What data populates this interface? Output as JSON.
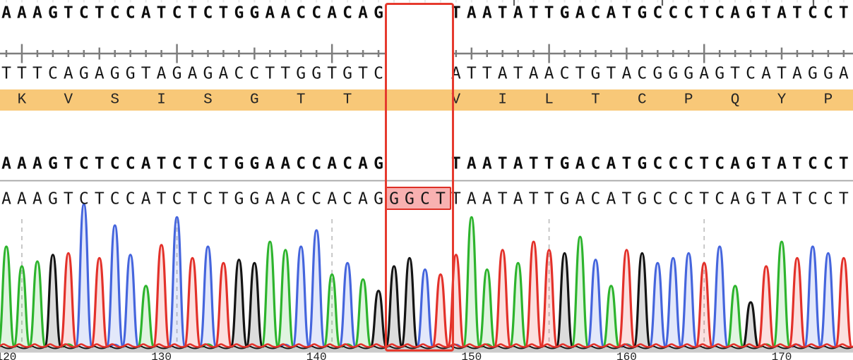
{
  "view_title": "sequence-alignment-with-chromatogram",
  "alignment": {
    "reference_row": {
      "left": "AAAGTCTCCATCTCTGGAACCACAG",
      "right": "TAATATTGACATGCCCTCAGTATCCT"
    },
    "complement_row": {
      "left": "TTTCAGAGGTAGAGACCTTGGTGTC",
      "right": "ATTATAACTGTACGGGAGTCATAGGA"
    },
    "translation_row": {
      "left": [
        "K",
        "V",
        "S",
        "I",
        "S",
        "G",
        "T",
        "T"
      ],
      "right": [
        "V",
        "I",
        "L",
        "T",
        "C",
        "P",
        "Q",
        "Y",
        "P"
      ],
      "band_color": "#f8c878"
    },
    "consensus_row": {
      "left": "AAAGTCTCCATCTCTGGAACCACAG",
      "right": "TAATATTGACATGCCCTCAGTATCCT"
    },
    "insertion": {
      "bases": "GGCT",
      "gap_columns": 4,
      "box_border_color": "#e63a2e",
      "bases_fill_color": "#f8b1b1",
      "bases_border_color": "#dd2f26"
    }
  },
  "chart_data": {
    "type": "chromatogram",
    "title": "",
    "sequence": "AAAGTCTCCATCTCTGGAACCACAGGGCTTAATATTGACATGCCCTCAGTATCCT",
    "peak_heights": [
      0.62,
      0.5,
      0.53,
      0.57,
      0.58,
      0.88,
      0.55,
      0.75,
      0.57,
      0.38,
      0.63,
      0.8,
      0.55,
      0.62,
      0.52,
      0.54,
      0.52,
      0.65,
      0.6,
      0.62,
      0.72,
      0.45,
      0.52,
      0.42,
      0.35,
      0.5,
      0.55,
      0.48,
      0.45,
      0.57,
      0.8,
      0.48,
      0.6,
      0.52,
      0.65,
      0.6,
      0.58,
      0.68,
      0.54,
      0.38,
      0.6,
      0.58,
      0.52,
      0.55,
      0.58,
      0.52,
      0.62,
      0.38,
      0.28,
      0.5,
      0.65,
      0.55,
      0.62,
      0.58,
      0.55
    ],
    "base_colors": {
      "A": "#2db42d",
      "C": "#4565dd",
      "G": "#141414",
      "T": "#e3312a"
    },
    "x_axis": {
      "tick_labels": [
        "120",
        "130",
        "140",
        "150",
        "160",
        "170"
      ],
      "label_base_index": [
        0,
        10,
        20,
        30,
        40,
        50
      ]
    },
    "gridlines_base_index": [
      1,
      11,
      21,
      35,
      45
    ],
    "grid": "dashed-vertical",
    "gridline_color": "#c2c2c2"
  },
  "decorations": {
    "top_ticks_x": [
      728,
      938,
      1152
    ],
    "ruler_color": "#7d7d7d",
    "separator_color": "#a3a3a3",
    "axis_bar_color": "#cbcbcb"
  }
}
